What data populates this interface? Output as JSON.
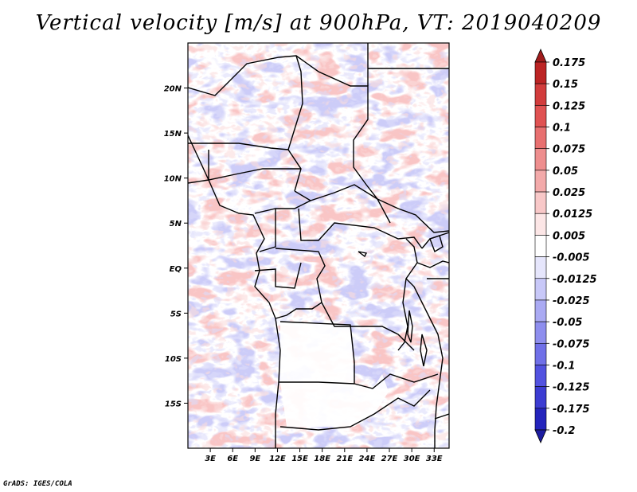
{
  "title": "Vertical velocity [m/s] at 900hPa, VT: 2019040209",
  "credit": "GrADS: IGES/COLA",
  "colors": {
    "background": "#ffffff",
    "frame": "#000000",
    "positive_dark": "#a01c1c",
    "negative_dark": "#1c1ca0"
  },
  "chart_data": {
    "type": "heatmap",
    "title": "Vertical velocity [m/s] at 900hPa, VT: 2019040209",
    "variable": "Vertical velocity",
    "units": "m/s",
    "level": "900hPa",
    "valid_time": "2019040209",
    "x_range": [
      0,
      35
    ],
    "y_range": [
      -20,
      25
    ],
    "x_ticks": [
      {
        "value": 3,
        "label": "3E"
      },
      {
        "value": 6,
        "label": "6E"
      },
      {
        "value": 9,
        "label": "9E"
      },
      {
        "value": 12,
        "label": "12E"
      },
      {
        "value": 15,
        "label": "15E"
      },
      {
        "value": 18,
        "label": "18E"
      },
      {
        "value": 21,
        "label": "21E"
      },
      {
        "value": 24,
        "label": "24E"
      },
      {
        "value": 27,
        "label": "27E"
      },
      {
        "value": 30,
        "label": "30E"
      },
      {
        "value": 33,
        "label": "33E"
      }
    ],
    "y_ticks": [
      {
        "value": 20,
        "label": "20N"
      },
      {
        "value": 15,
        "label": "15N"
      },
      {
        "value": 10,
        "label": "10N"
      },
      {
        "value": 5,
        "label": "5N"
      },
      {
        "value": 0,
        "label": "EQ"
      },
      {
        "value": -5,
        "label": "5S"
      },
      {
        "value": -10,
        "label": "10S"
      },
      {
        "value": -15,
        "label": "15S"
      }
    ],
    "colorbar": {
      "labels": [
        "0.175",
        "0.15",
        "0.125",
        "0.1",
        "0.075",
        "0.05",
        "0.025",
        "0.0125",
        "0.005",
        "-0.005",
        "-0.0125",
        "-0.025",
        "-0.05",
        "-0.075",
        "-0.1",
        "-0.125",
        "-0.175",
        "-0.2"
      ],
      "colors": [
        "#a01c1c",
        "#bc2424",
        "#d23c3c",
        "#e05252",
        "#e87070",
        "#ee8e8e",
        "#f3aaaa",
        "#f8c8c8",
        "#fce6e6",
        "#ffffff",
        "#e6e6fc",
        "#c8c8f8",
        "#aaaaf3",
        "#8e8eee",
        "#7070e8",
        "#5252e0",
        "#3c3cd2",
        "#2424bc",
        "#1c1ca0"
      ]
    }
  }
}
